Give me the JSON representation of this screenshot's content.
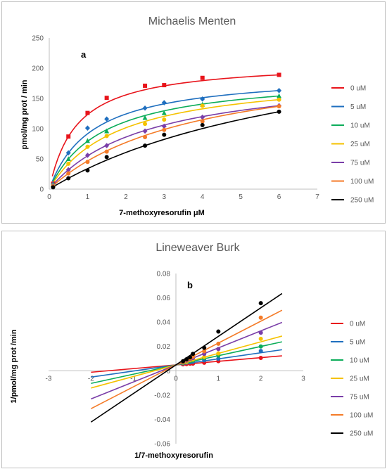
{
  "chart_data": [
    {
      "type": "scatter",
      "title": "Michaelis Menten",
      "panel_label": "a",
      "xlabel": "7-methoxyresorufin μM",
      "ylabel": "pmol/mg prot / min",
      "xlim": [
        0,
        7
      ],
      "ylim": [
        0,
        250
      ],
      "x_ticks": [
        0,
        1,
        2,
        3,
        4,
        5,
        6,
        7
      ],
      "y_ticks": [
        0,
        50,
        100,
        150,
        200,
        250
      ],
      "grid": false,
      "legend_position": "right",
      "fit": "michaelis-menten curves",
      "x": [
        0.1,
        0.5,
        1,
        1.5,
        2.5,
        3,
        4,
        6
      ],
      "series": [
        {
          "name": "0 uM",
          "color": "#e8141b",
          "marker": "square",
          "values": [
            9,
            87,
            126,
            151,
            171,
            172,
            184,
            189
          ]
        },
        {
          "name": "5 uM",
          "color": "#1f6fbf",
          "marker": "diamond",
          "values": [
            8,
            60,
            101,
            116,
            134,
            143,
            149,
            163
          ]
        },
        {
          "name": "10 uM",
          "color": "#0cad5a",
          "marker": "triangle",
          "values": [
            7,
            50,
            80,
            96,
            118,
            126,
            140,
            154
          ]
        },
        {
          "name": "25 uM",
          "color": "#f5c200",
          "marker": "circle",
          "values": [
            6,
            42,
            70,
            88,
            108,
            115,
            138,
            148
          ]
        },
        {
          "name": "75 uM",
          "color": "#7a3ea8",
          "marker": "diamond",
          "values": [
            5,
            32,
            56,
            72,
            96,
            104,
            119,
            138
          ]
        },
        {
          "name": "100 uM",
          "color": "#f47b28",
          "marker": "circle",
          "values": [
            4,
            26,
            45,
            62,
            86,
            98,
            112,
            137
          ]
        },
        {
          "name": "250 uM",
          "color": "#000000",
          "marker": "circle",
          "values": [
            3,
            18,
            31,
            53,
            72,
            90,
            106,
            128
          ]
        }
      ]
    },
    {
      "type": "line",
      "title": "Lineweaver Burk",
      "panel_label": "b",
      "xlabel": "1/7-methoxyresorufin",
      "ylabel": "1/pmol/mg prot /min",
      "xlim": [
        -3,
        3
      ],
      "ylim": [
        -0.06,
        0.08
      ],
      "x_ticks": [
        -3,
        -2,
        -1,
        0,
        1,
        2,
        3
      ],
      "y_ticks": [
        -0.06,
        -0.04,
        -0.02,
        0,
        0.02,
        0.04,
        0.06,
        0.08
      ],
      "grid": false,
      "legend_position": "right",
      "line_x_range": [
        -2,
        2.5
      ],
      "x": [
        0.167,
        0.25,
        0.333,
        0.4,
        0.667,
        1,
        2
      ],
      "series": [
        {
          "name": "0 uM",
          "color": "#e8141b",
          "intercept": 0.0048,
          "slope": 0.003,
          "values": [
            0.0053,
            0.0055,
            0.0058,
            0.0059,
            0.0066,
            0.0079,
            0.0106
          ]
        },
        {
          "name": "5 uM",
          "color": "#1f6fbf",
          "intercept": 0.0048,
          "slope": 0.005,
          "values": [
            0.0061,
            0.0067,
            0.007,
            0.0074,
            0.0086,
            0.0099,
            0.0163
          ]
        },
        {
          "name": "10 uM",
          "color": "#0cad5a",
          "intercept": 0.0048,
          "slope": 0.0076,
          "values": [
            0.0065,
            0.0071,
            0.0079,
            0.0085,
            0.0104,
            0.0125,
            0.02
          ]
        },
        {
          "name": "25 uM",
          "color": "#f5c200",
          "intercept": 0.0048,
          "slope": 0.0095,
          "values": [
            0.0068,
            0.0073,
            0.0087,
            0.0093,
            0.0114,
            0.0143,
            0.0263
          ]
        },
        {
          "name": "75 uM",
          "color": "#7a3ea8",
          "intercept": 0.0048,
          "slope": 0.014,
          "values": [
            0.0072,
            0.0084,
            0.0096,
            0.0104,
            0.0139,
            0.0179,
            0.0313
          ]
        },
        {
          "name": "100 uM",
          "color": "#f47b28",
          "intercept": 0.0048,
          "slope": 0.018,
          "values": [
            0.0073,
            0.0089,
            0.0102,
            0.0116,
            0.0161,
            0.0222,
            0.0437
          ]
        },
        {
          "name": "250 uM",
          "color": "#000000",
          "intercept": 0.0048,
          "slope": 0.0235,
          "values": [
            0.0078,
            0.0094,
            0.0111,
            0.0139,
            0.0189,
            0.0323,
            0.0556
          ]
        }
      ]
    }
  ]
}
